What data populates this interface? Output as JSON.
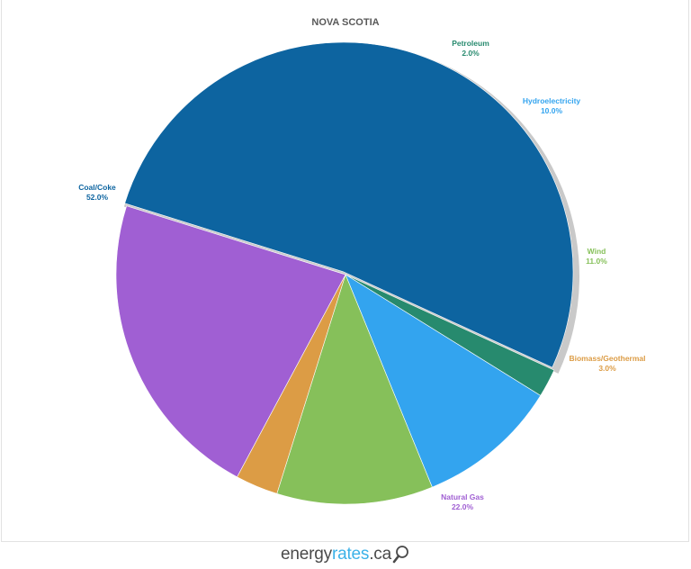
{
  "chart_data": {
    "type": "pie",
    "title": "NOVA SCOTIA",
    "slices": [
      {
        "label": "Coal/Coke",
        "value": 52.0,
        "value_label": "52.0%",
        "color": "#0d64a0"
      },
      {
        "label": "Petroleum",
        "value": 2.0,
        "value_label": "2.0%",
        "color": "#278a6e"
      },
      {
        "label": "Hydroelectricity",
        "value": 10.0,
        "value_label": "10.0%",
        "color": "#33a4ef"
      },
      {
        "label": "Wind",
        "value": 11.0,
        "value_label": "11.0%",
        "color": "#86c05a"
      },
      {
        "label": "Biomass/Geothermal",
        "value": 3.0,
        "value_label": "3.0%",
        "color": "#dc9c45"
      },
      {
        "label": "Natural Gas",
        "value": 22.0,
        "value_label": "22.0%",
        "color": "#a05fd3"
      }
    ],
    "legend": "none",
    "start_slice": "Coal/Coke",
    "highlighted_slice": "Coal/Coke"
  },
  "logo": {
    "brand": "energy",
    "accent": "rates",
    "suffix": ".ca",
    "icon": "magnifier-icon"
  }
}
